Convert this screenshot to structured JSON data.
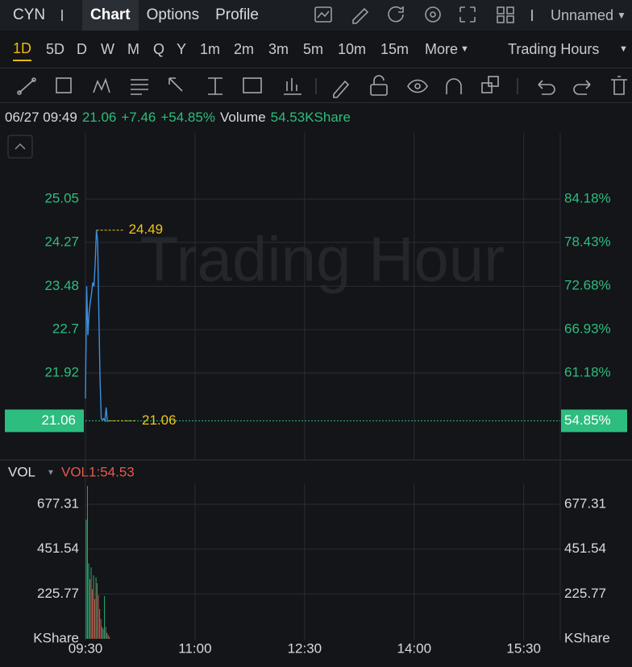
{
  "header": {
    "symbol": "CYN",
    "tabs": [
      "Chart",
      "Options",
      "Profile"
    ],
    "layout_name": "Unnamed"
  },
  "periods": [
    "1D",
    "5D",
    "D",
    "W",
    "M",
    "Q",
    "Y",
    "1m",
    "2m",
    "3m",
    "5m",
    "10m",
    "15m",
    "More"
  ],
  "session": "Trading Hours",
  "info": {
    "datetime": "06/27 09:49",
    "price": "21.06",
    "change": "+7.46",
    "change_pct": "+54.85%",
    "volume_label": "Volume",
    "volume": "54.53KShare"
  },
  "watermark": "Trading Hour",
  "chart_data": [
    {
      "type": "line",
      "x": [
        570,
        571,
        572,
        573,
        574,
        575,
        576,
        577,
        578,
        579,
        580,
        581,
        582,
        583,
        584,
        585,
        586,
        587,
        588,
        589
      ],
      "values": [
        21.46,
        23.48,
        22.6,
        23.0,
        23.2,
        23.35,
        23.55,
        23.48,
        23.9,
        24.49,
        24.3,
        23.0,
        21.8,
        21.1,
        21.08,
        21.1,
        21.06,
        21.3,
        21.05,
        21.06
      ],
      "color": "#3d8fe0",
      "xlim": [
        570,
        960
      ],
      "xticks": [
        {
          "value": 570,
          "label": "09:30"
        },
        {
          "value": 660,
          "label": "11:00"
        },
        {
          "value": 750,
          "label": "12:30"
        },
        {
          "value": 840,
          "label": "14:00"
        },
        {
          "value": 930,
          "label": "15:30"
        }
      ],
      "ylim": [
        20.37,
        26.24
      ],
      "yticks": [
        21.92,
        22.7,
        23.48,
        24.27,
        25.05
      ],
      "y2lim": [
        49.78,
        92.94
      ],
      "y2ticks": [
        {
          "value": 61.18,
          "label": "61.18%"
        },
        {
          "value": 66.93,
          "label": "66.93%"
        },
        {
          "value": 72.68,
          "label": "72.68%"
        },
        {
          "value": 78.43,
          "label": "78.43%"
        },
        {
          "value": 84.18,
          "label": "84.18%"
        }
      ],
      "high": 24.49,
      "last": 21.06,
      "last_pct": {
        "value": 54.85,
        "label": "54.85%"
      },
      "grid": true
    },
    {
      "type": "bar",
      "indicator": "VOL",
      "x": [
        570,
        571,
        572,
        573,
        574,
        575,
        576,
        577,
        578,
        579,
        580,
        581,
        582,
        583,
        584,
        585,
        586,
        587,
        588,
        589
      ],
      "series": [
        {
          "name": "VOL1:54.53",
          "color": "#e8584f",
          "values": [
            600,
            770,
            380,
            300,
            360,
            250,
            320,
            200,
            310,
            280,
            220,
            150,
            100,
            60,
            50,
            215,
            60,
            30,
            20,
            10
          ],
          "colors": [
            "#2dbd7e",
            "#e8584f",
            "#2dbd7e",
            "#e8584f",
            "#2dbd7e",
            "#e8584f",
            "#2dbd7e",
            "#e8584f",
            "#2dbd7e",
            "#e8584f",
            "#e8584f",
            "#e8584f",
            "#e8584f",
            "#2dbd7e",
            "#e8584f",
            "#2dbd7e",
            "#e8584f",
            "#2dbd7e",
            "#e8584f",
            "#2dbd7e"
          ]
        }
      ],
      "xlim": [
        570,
        960
      ],
      "ylim": [
        0,
        783
      ],
      "yticks": [
        {
          "value": 0,
          "label": "KShare"
        },
        225.77,
        451.54,
        677.31
      ],
      "grid": true
    }
  ]
}
